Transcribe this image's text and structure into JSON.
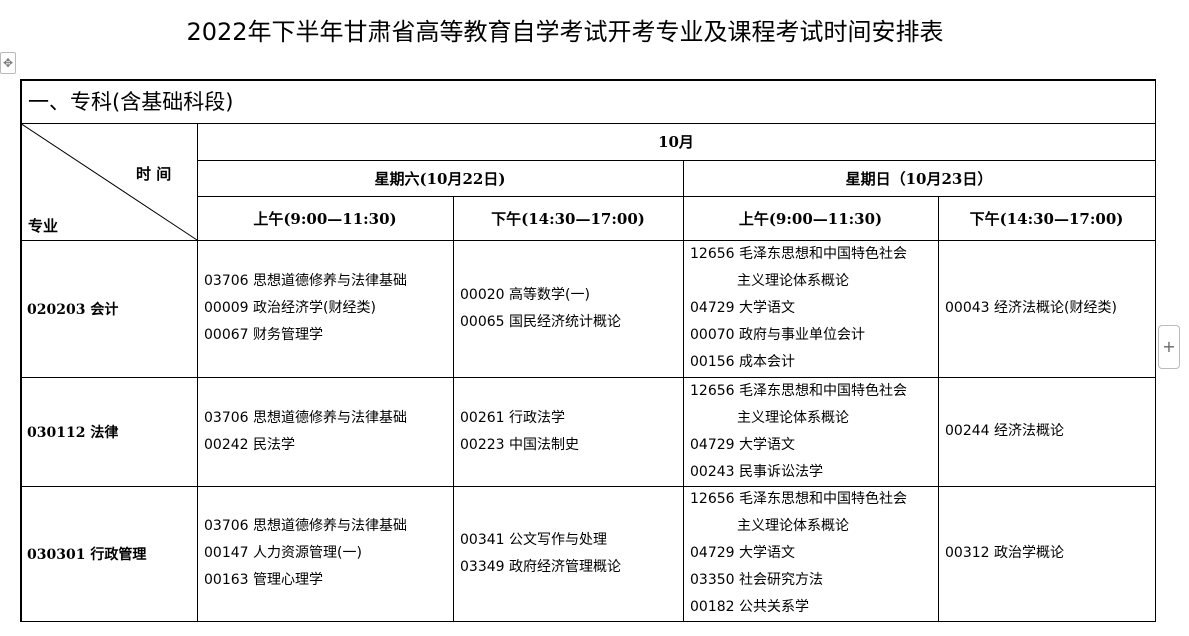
{
  "title": "2022年下半年甘肃省高等教育自学考试开考专业及课程考试时间安排表",
  "section": "一、专科(含基础科段)",
  "corner": {
    "time": "时 间",
    "major": "专业"
  },
  "month": "10月",
  "days": [
    "星期六(10月22日)",
    "星期日（10月23日）"
  ],
  "slots": [
    "上午(9:00—11:30)",
    "下午(14:30—17:00)",
    "上午(9:00—11:30)",
    "下午(14:30—17:00)"
  ],
  "rows": [
    {
      "major": "020203 会计",
      "sat_am": [
        "03706 思想道德修养与法律基础",
        "00009 政治经济学(财经类)",
        "00067 财务管理学"
      ],
      "sat_pm": [
        "00020 高等数学(一)",
        "00065 国民经济统计概论"
      ],
      "sun_am": [
        "12656 毛泽东思想和中国特色社会",
        "主义理论体系概论",
        "04729 大学语文",
        "00070 政府与事业单位会计",
        "00156 成本会计"
      ],
      "sun_pm": [
        "00043 经济法概论(财经类)"
      ]
    },
    {
      "major": "030112 法律",
      "sat_am": [
        "03706 思想道德修养与法律基础",
        "00242 民法学"
      ],
      "sat_pm": [
        "00261 行政法学",
        "00223 中国法制史"
      ],
      "sun_am": [
        "12656 毛泽东思想和中国特色社会",
        "主义理论体系概论",
        "04729 大学语文",
        "00243 民事诉讼法学"
      ],
      "sun_pm": [
        "00244 经济法概论"
      ]
    },
    {
      "major": "030301 行政管理",
      "sat_am": [
        "03706 思想道德修养与法律基础",
        "00147 人力资源管理(一)",
        "00163 管理心理学"
      ],
      "sat_pm": [
        "00341 公文写作与处理",
        "03349 政府经济管理概论"
      ],
      "sun_am": [
        "12656 毛泽东思想和中国特色社会",
        "主义理论体系概论",
        "04729 大学语文",
        "03350 社会研究方法",
        "00182 公共关系学"
      ],
      "sun_pm": [
        "00312 政治学概论"
      ]
    }
  ]
}
